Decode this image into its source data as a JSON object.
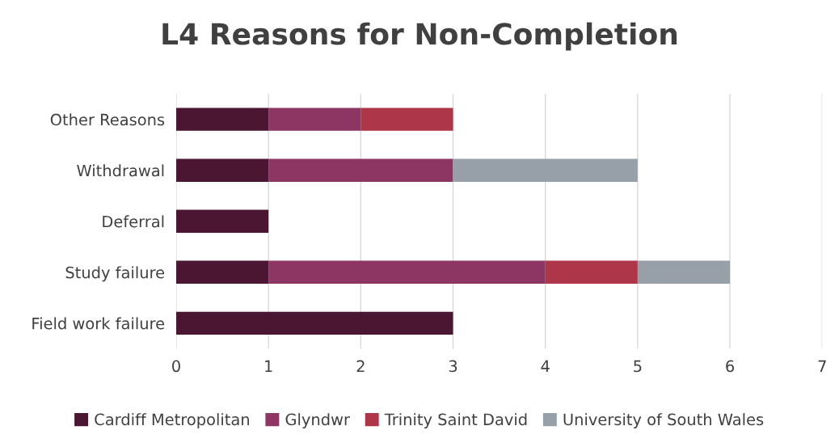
{
  "chart_data": {
    "type": "bar",
    "orientation": "horizontal",
    "stacked": true,
    "title": "L4 Reasons for Non-Completion",
    "categories": [
      "Other Reasons",
      "Withdrawal",
      "Deferral",
      "Study failure",
      "Field work failure"
    ],
    "series": [
      {
        "name": "Cardiff Metropolitan",
        "color": "#4a1632",
        "values": [
          1,
          1,
          1,
          1,
          3
        ]
      },
      {
        "name": "Glyndwr",
        "color": "#8e3663",
        "values": [
          1,
          2,
          null,
          3,
          null
        ]
      },
      {
        "name": "Trinity Saint David",
        "color": "#ad3648",
        "values": [
          1,
          null,
          null,
          1,
          null
        ]
      },
      {
        "name": "University of South Wales",
        "color": "#97a0a9",
        "values": [
          null,
          2,
          null,
          1,
          null
        ]
      }
    ],
    "xlim": [
      0,
      7
    ],
    "xticks": [
      0,
      1,
      2,
      3,
      4,
      5,
      6,
      7
    ],
    "grid": "x",
    "legend": "bottom"
  }
}
